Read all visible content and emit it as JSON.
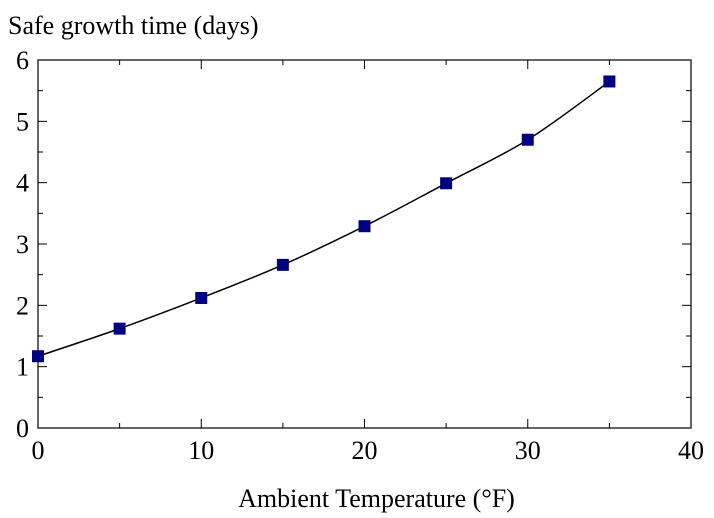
{
  "chart_data": {
    "type": "line",
    "title": "",
    "xlabel": "Ambient Temperature (°F)",
    "ylabel": "Safe growth time (days)",
    "xlim": [
      0,
      40
    ],
    "ylim": [
      0,
      6
    ],
    "x_ticks": [
      0,
      10,
      20,
      30,
      40
    ],
    "y_ticks": [
      0,
      1,
      2,
      3,
      4,
      5,
      6
    ],
    "x_minor_step": 5,
    "y_minor_step": 0.5,
    "grid": false,
    "series": [
      {
        "x": [
          0,
          5,
          10,
          15,
          20,
          25,
          30,
          35
        ],
        "y": [
          1.17,
          1.62,
          2.12,
          2.66,
          3.29,
          3.99,
          4.7,
          5.65
        ],
        "marker": "square",
        "marker_color": "#000080",
        "line_color": "#000000"
      }
    ]
  }
}
